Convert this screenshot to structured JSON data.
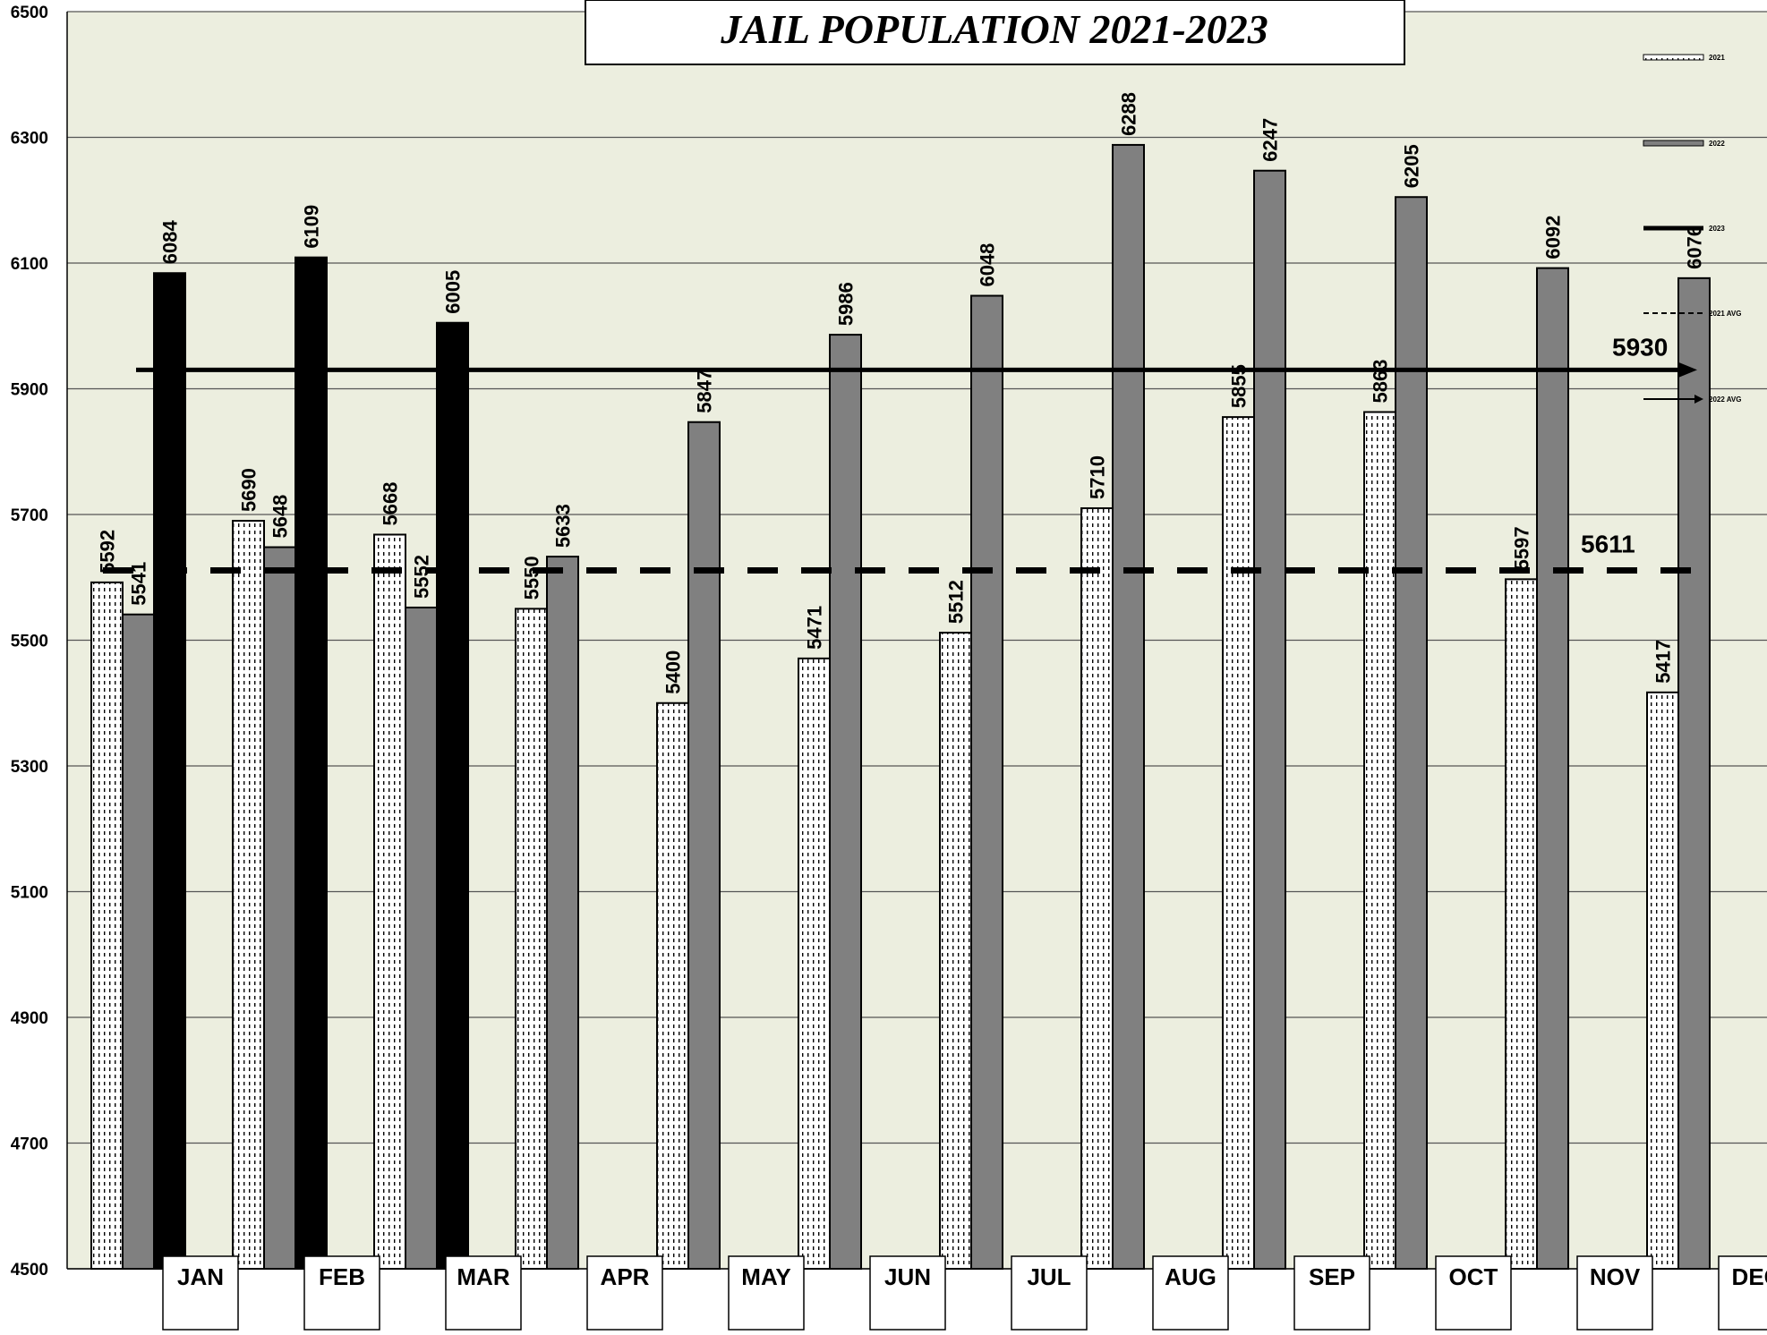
{
  "chart_data": {
    "type": "bar",
    "title": "JAIL POPULATION 2021-2023",
    "categories": [
      "JAN",
      "FEB",
      "MAR",
      "APR",
      "MAY",
      "JUN",
      "JUL",
      "AUG",
      "SEP",
      "OCT",
      "NOV",
      "DEC"
    ],
    "series": [
      {
        "name": "2021",
        "values": [
          5592,
          5690,
          5668,
          5550,
          5400,
          5471,
          5512,
          5710,
          5855,
          5863,
          5597,
          5417
        ]
      },
      {
        "name": "2022",
        "values": [
          5541,
          5648,
          5552,
          5633,
          5847,
          5986,
          6048,
          6288,
          6247,
          6205,
          6092,
          6076
        ]
      },
      {
        "name": "2023",
        "values": [
          6084,
          6109,
          6005,
          null,
          null,
          null,
          null,
          null,
          null,
          null,
          null,
          null
        ]
      }
    ],
    "reference_lines": [
      {
        "name": "2021 AVG",
        "value": 5611,
        "style": "dashed"
      },
      {
        "name": "2022 AVG",
        "value": 5930,
        "style": "arrow"
      }
    ],
    "yticks": [
      4500,
      4700,
      4900,
      5100,
      5300,
      5500,
      5700,
      5900,
      6100,
      6300,
      6500
    ],
    "ylim": [
      4500,
      6500
    ],
    "grid": true,
    "legend": {
      "position": "right",
      "entries": [
        "2021",
        "2022",
        "2023",
        "2021 AVG",
        "2022 AVG"
      ]
    },
    "colors": {
      "plot_bg": "#ECEEDF",
      "bar_2022": "#808080",
      "bar_2023": "#000000",
      "bar_2021": "#FFFFFF"
    }
  }
}
